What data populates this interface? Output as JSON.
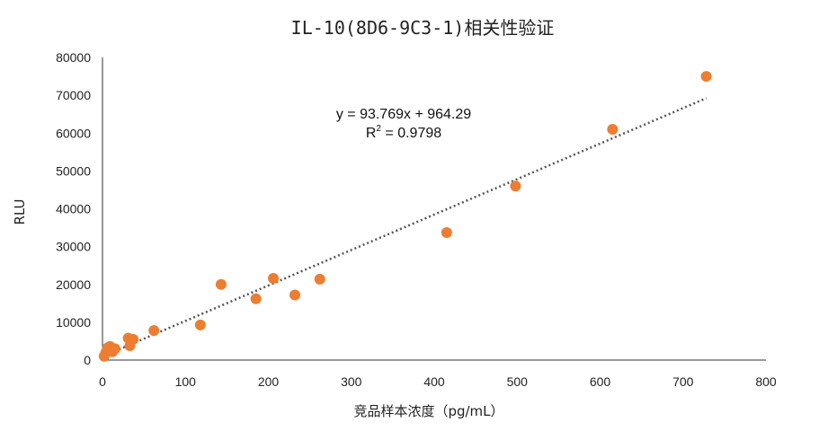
{
  "chart_data": {
    "type": "scatter",
    "title": "IL-10(8D6-9C3-1)相关性验证",
    "xlabel": "竞品样本浓度（pg/mL）",
    "ylabel": "RLU",
    "xlim": [
      0,
      800
    ],
    "ylim": [
      0,
      80000
    ],
    "x_ticks": [
      "0",
      "100",
      "200",
      "300",
      "400",
      "500",
      "600",
      "700",
      "800"
    ],
    "y_ticks": [
      "0",
      "10000",
      "20000",
      "30000",
      "40000",
      "50000",
      "60000",
      "70000",
      "80000"
    ],
    "grid": false,
    "legend": "none",
    "point_color": "#ED7D31",
    "trendline_color": "#555555",
    "series": [
      {
        "points": [
          [
            2,
            1000
          ],
          [
            4,
            2000
          ],
          [
            6,
            3200
          ],
          [
            9,
            3600
          ],
          [
            12,
            2200
          ],
          [
            15,
            3000
          ],
          [
            31,
            5800
          ],
          [
            33,
            3800
          ],
          [
            37,
            5500
          ],
          [
            62,
            7800
          ],
          [
            118,
            9300
          ],
          [
            143,
            20000
          ],
          [
            185,
            16200
          ],
          [
            206,
            21600
          ],
          [
            232,
            17200
          ],
          [
            262,
            21400
          ],
          [
            415,
            33700
          ],
          [
            498,
            46000
          ],
          [
            615,
            61000
          ],
          [
            728,
            75000
          ]
        ]
      }
    ],
    "trendline": {
      "type": "linear",
      "slope": 93.769,
      "intercept": 964.29,
      "x_range": [
        0,
        728
      ],
      "equation_text": "y = 93.769x + 964.29",
      "r2_prefix": "R",
      "r2_sup": "2",
      "r2_value": " = 0.9798"
    }
  }
}
